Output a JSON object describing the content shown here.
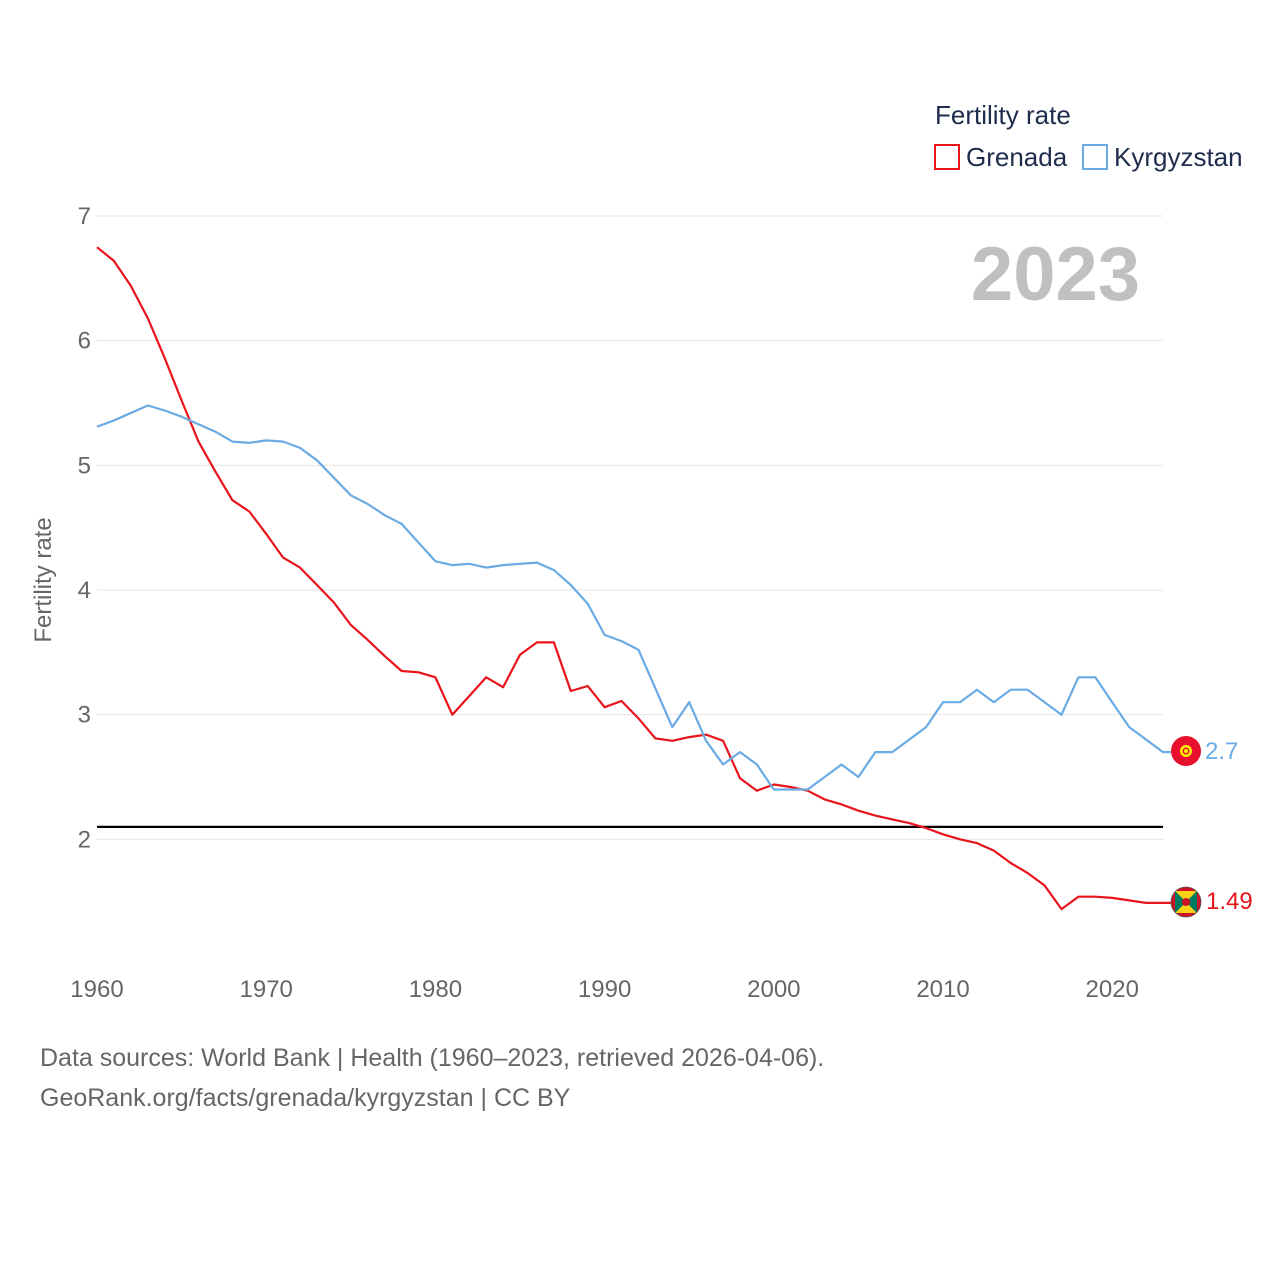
{
  "chart_data": {
    "type": "line",
    "year_label": "2023",
    "ylabel": "Fertility rate",
    "ylim": [
      1,
      7
    ],
    "xlim": [
      1960,
      2023
    ],
    "y_ticks": [
      "2",
      "3",
      "4",
      "5",
      "6",
      "7"
    ],
    "x_ticks": [
      "1960",
      "1970",
      "1980",
      "1990",
      "2000",
      "2010",
      "2020"
    ],
    "reference_line": 2.1,
    "legend": {
      "title": "Fertility rate",
      "position": "top-right"
    },
    "x": [
      1960,
      1961,
      1962,
      1963,
      1964,
      1965,
      1966,
      1967,
      1968,
      1969,
      1970,
      1971,
      1972,
      1973,
      1974,
      1975,
      1976,
      1977,
      1978,
      1979,
      1980,
      1981,
      1982,
      1983,
      1984,
      1985,
      1986,
      1987,
      1988,
      1989,
      1990,
      1991,
      1992,
      1993,
      1994,
      1995,
      1996,
      1997,
      1998,
      1999,
      2000,
      2001,
      2002,
      2003,
      2004,
      2005,
      2006,
      2007,
      2008,
      2009,
      2010,
      2011,
      2012,
      2013,
      2014,
      2015,
      2016,
      2017,
      2018,
      2019,
      2020,
      2021,
      2022,
      2023
    ],
    "series": [
      {
        "name": "Grenada",
        "color": "#e8131b",
        "end_label": "1.49",
        "values": [
          6.75,
          6.64,
          6.44,
          6.18,
          5.86,
          5.52,
          5.19,
          4.95,
          4.72,
          4.63,
          4.45,
          4.26,
          4.18,
          4.04,
          3.9,
          3.72,
          3.6,
          3.47,
          3.35,
          3.34,
          3.3,
          3.0,
          3.15,
          3.3,
          3.22,
          3.48,
          3.58,
          3.58,
          3.19,
          3.23,
          3.06,
          3.11,
          2.97,
          2.81,
          2.79,
          2.82,
          2.84,
          2.79,
          2.49,
          2.39,
          2.44,
          2.42,
          2.39,
          2.32,
          2.28,
          2.23,
          2.19,
          2.16,
          2.13,
          2.09,
          2.04,
          2.0,
          1.97,
          1.91,
          1.81,
          1.73,
          1.63,
          1.44,
          1.54,
          1.54,
          1.53,
          1.51,
          1.49,
          1.49
        ]
      },
      {
        "name": "Kyrgyzstan",
        "color": "#6aabe4",
        "end_label": "2.7",
        "values": [
          5.31,
          5.36,
          5.42,
          5.48,
          5.44,
          5.39,
          5.33,
          5.27,
          5.19,
          5.18,
          5.2,
          5.19,
          5.14,
          5.04,
          4.9,
          4.76,
          4.69,
          4.6,
          4.53,
          4.38,
          4.23,
          4.2,
          4.21,
          4.18,
          4.2,
          4.21,
          4.22,
          4.16,
          4.04,
          3.89,
          3.64,
          3.59,
          3.52,
          3.21,
          2.9,
          3.1,
          2.79,
          2.6,
          2.7,
          2.6,
          2.4,
          2.4,
          2.4,
          2.5,
          2.6,
          2.5,
          2.7,
          2.7,
          2.8,
          2.9,
          3.1,
          3.1,
          3.2,
          3.1,
          3.2,
          3.2,
          3.1,
          3.0,
          3.3,
          3.3,
          3.1,
          2.9,
          2.8,
          2.7
        ]
      }
    ]
  },
  "footer": {
    "line1": "Data sources: World Bank | Health (1960–2023, retrieved 2026-04-06).",
    "line2": "GeoRank.org/facts/grenada/kyrgyzstan | CC BY"
  },
  "icons": {
    "grenada": "grenada-flag-icon",
    "kyrgyzstan": "kyrgyzstan-flag-icon"
  }
}
